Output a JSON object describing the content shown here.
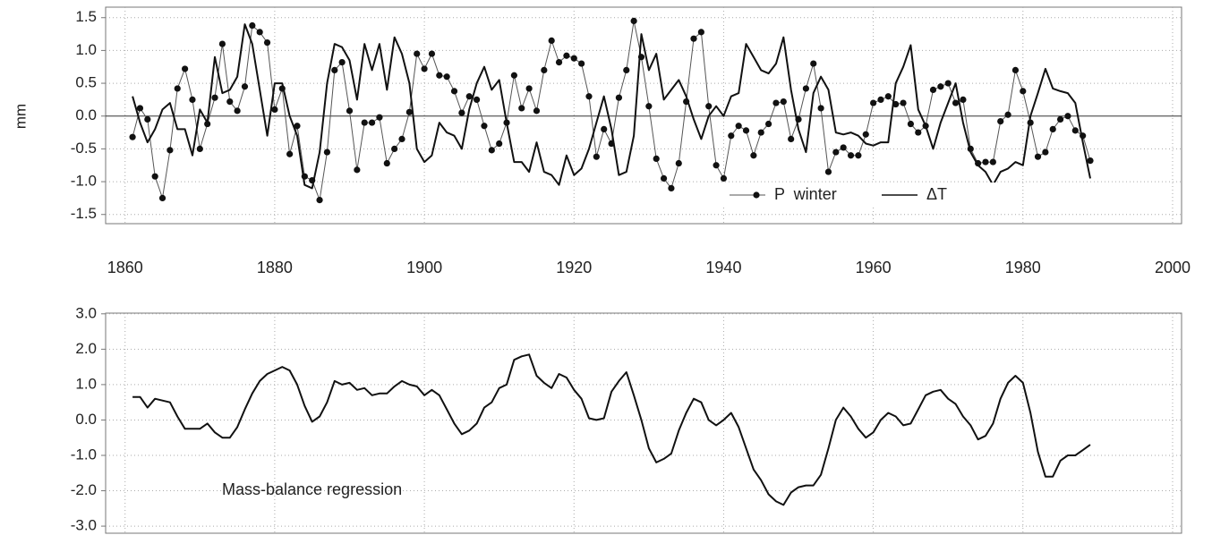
{
  "chart_data": [
    {
      "type": "line",
      "y_label": "mm",
      "x": [
        1861,
        1862,
        1863,
        1864,
        1865,
        1866,
        1867,
        1868,
        1869,
        1870,
        1871,
        1872,
        1873,
        1874,
        1875,
        1876,
        1877,
        1878,
        1879,
        1880,
        1881,
        1882,
        1883,
        1884,
        1885,
        1886,
        1887,
        1888,
        1889,
        1890,
        1891,
        1892,
        1893,
        1894,
        1895,
        1896,
        1897,
        1898,
        1899,
        1900,
        1901,
        1902,
        1903,
        1904,
        1905,
        1906,
        1907,
        1908,
        1909,
        1910,
        1911,
        1912,
        1913,
        1914,
        1915,
        1916,
        1917,
        1918,
        1919,
        1920,
        1921,
        1922,
        1923,
        1924,
        1925,
        1926,
        1927,
        1928,
        1929,
        1930,
        1931,
        1932,
        1933,
        1934,
        1935,
        1936,
        1937,
        1938,
        1939,
        1940,
        1941,
        1942,
        1943,
        1944,
        1945,
        1946,
        1947,
        1948,
        1949,
        1950,
        1951,
        1952,
        1953,
        1954,
        1955,
        1956,
        1957,
        1958,
        1959,
        1960,
        1961,
        1962,
        1963,
        1964,
        1965,
        1966,
        1967,
        1968,
        1969,
        1970,
        1971,
        1972,
        1973,
        1974,
        1975,
        1976,
        1977,
        1978,
        1979,
        1980,
        1981,
        1982,
        1983,
        1984,
        1985,
        1986,
        1987,
        1988,
        1989
      ],
      "series": [
        {
          "name": "P  winter",
          "color": "#111111",
          "line_color": "#555555",
          "marker": "circle",
          "values": [
            -0.32,
            0.12,
            -0.05,
            -0.92,
            -1.25,
            -0.52,
            0.42,
            0.72,
            0.25,
            -0.5,
            -0.12,
            0.28,
            1.1,
            0.22,
            0.08,
            0.45,
            1.38,
            1.28,
            1.12,
            0.1,
            0.42,
            -0.58,
            -0.15,
            -0.92,
            -0.98,
            -1.28,
            -0.55,
            0.7,
            0.82,
            0.08,
            -0.82,
            -0.1,
            -0.1,
            -0.02,
            -0.72,
            -0.5,
            -0.35,
            0.06,
            0.95,
            0.72,
            0.95,
            0.62,
            0.6,
            0.38,
            0.05,
            0.3,
            0.25,
            -0.15,
            -0.52,
            -0.42,
            -0.1,
            0.62,
            0.12,
            0.42,
            0.08,
            0.7,
            1.15,
            0.82,
            0.92,
            0.88,
            0.8,
            0.3,
            -0.62,
            -0.2,
            -0.42,
            0.28,
            0.7,
            1.45,
            0.9,
            0.15,
            -0.65,
            -0.95,
            -1.1,
            -0.72,
            0.22,
            1.18,
            1.28,
            0.15,
            -0.75,
            -0.95,
            -0.3,
            -0.15,
            -0.22,
            -0.6,
            -0.25,
            -0.12,
            0.2,
            0.22,
            -0.35,
            -0.05,
            0.42,
            0.8,
            0.12,
            -0.85,
            -0.55,
            -0.48,
            -0.6,
            -0.6,
            -0.28,
            0.2,
            0.25,
            0.3,
            0.18,
            0.2,
            -0.12,
            -0.25,
            -0.15,
            0.4,
            0.45,
            0.5,
            0.2,
            0.25,
            -0.5,
            -0.72,
            -0.7,
            -0.7,
            -0.08,
            0.02,
            0.7,
            0.38,
            -0.1,
            -0.62,
            -0.55,
            -0.2,
            -0.05,
            0.0,
            -0.22,
            -0.3,
            -0.68
          ]
        },
        {
          "name": "ΔT",
          "color": "#111111",
          "line_color": "#111111",
          "values": [
            0.3,
            -0.1,
            -0.4,
            -0.2,
            0.1,
            0.2,
            -0.2,
            -0.2,
            -0.6,
            0.1,
            -0.1,
            0.9,
            0.35,
            0.4,
            0.6,
            1.4,
            1.1,
            0.4,
            -0.3,
            0.5,
            0.5,
            0.0,
            -0.3,
            -1.05,
            -1.1,
            -0.55,
            0.5,
            1.1,
            1.05,
            0.85,
            0.25,
            1.1,
            0.7,
            1.1,
            0.4,
            1.2,
            0.95,
            0.5,
            -0.5,
            -0.7,
            -0.6,
            -0.1,
            -0.25,
            -0.3,
            -0.5,
            0.1,
            0.5,
            0.75,
            0.4,
            0.55,
            -0.1,
            -0.7,
            -0.7,
            -0.85,
            -0.4,
            -0.85,
            -0.9,
            -1.05,
            -0.6,
            -0.9,
            -0.8,
            -0.5,
            -0.1,
            0.3,
            -0.2,
            -0.9,
            -0.85,
            -0.3,
            1.25,
            0.7,
            0.95,
            0.25,
            0.4,
            0.55,
            0.3,
            -0.05,
            -0.35,
            0.0,
            0.15,
            0.0,
            0.3,
            0.35,
            1.1,
            0.9,
            0.7,
            0.65,
            0.8,
            1.2,
            0.4,
            -0.2,
            -0.55,
            0.35,
            0.6,
            0.4,
            -0.25,
            -0.28,
            -0.25,
            -0.3,
            -0.42,
            -0.45,
            -0.4,
            -0.4,
            0.5,
            0.75,
            1.08,
            0.1,
            -0.15,
            -0.5,
            -0.1,
            0.2,
            0.5,
            -0.1,
            -0.55,
            -0.75,
            -0.85,
            -1.05,
            -0.85,
            -0.8,
            -0.7,
            -0.75,
            0.0,
            0.35,
            0.72,
            0.42,
            0.38,
            0.35,
            0.2,
            -0.4,
            -0.95
          ]
        }
      ],
      "xlim": [
        1857.4,
        2001.2
      ],
      "xticks": [
        1860,
        1880,
        1900,
        1920,
        1940,
        1960,
        1980,
        2000
      ],
      "ylim": [
        -1.64,
        1.66
      ],
      "yticks": [
        1.5,
        {
          "value": 1,
          "label": "1.0"
        },
        0.5,
        {
          "value": 0,
          "label": "0.0"
        },
        -0.5,
        {
          "value": -1,
          "label": "-1.0"
        },
        -1.5
      ],
      "grid": true,
      "zero_line": true,
      "legend": "lower right"
    },
    {
      "type": "line",
      "annotation": "Mass-balance regression",
      "x": [
        1861,
        1862,
        1863,
        1864,
        1865,
        1866,
        1867,
        1868,
        1869,
        1870,
        1871,
        1872,
        1873,
        1874,
        1875,
        1876,
        1877,
        1878,
        1879,
        1880,
        1881,
        1882,
        1883,
        1884,
        1885,
        1886,
        1887,
        1888,
        1889,
        1890,
        1891,
        1892,
        1893,
        1894,
        1895,
        1896,
        1897,
        1898,
        1899,
        1900,
        1901,
        1902,
        1903,
        1904,
        1905,
        1906,
        1907,
        1908,
        1909,
        1910,
        1911,
        1912,
        1913,
        1914,
        1915,
        1916,
        1917,
        1918,
        1919,
        1920,
        1921,
        1922,
        1923,
        1924,
        1925,
        1926,
        1927,
        1928,
        1929,
        1930,
        1931,
        1932,
        1933,
        1934,
        1935,
        1936,
        1937,
        1938,
        1939,
        1940,
        1941,
        1942,
        1943,
        1944,
        1945,
        1946,
        1947,
        1948,
        1949,
        1950,
        1951,
        1952,
        1953,
        1954,
        1955,
        1956,
        1957,
        1958,
        1959,
        1960,
        1961,
        1962,
        1963,
        1964,
        1965,
        1966,
        1967,
        1968,
        1969,
        1970,
        1971,
        1972,
        1973,
        1974,
        1975,
        1976,
        1977,
        1978,
        1979,
        1980,
        1981,
        1982,
        1983,
        1984,
        1985,
        1986,
        1987,
        1988,
        1989
      ],
      "values": [
        0.65,
        0.65,
        0.35,
        0.6,
        0.55,
        0.5,
        0.1,
        -0.25,
        -0.25,
        -0.25,
        -0.1,
        -0.35,
        -0.5,
        -0.5,
        -0.2,
        0.3,
        0.75,
        1.1,
        1.3,
        1.4,
        1.5,
        1.4,
        1.0,
        0.4,
        -0.05,
        0.1,
        0.5,
        1.1,
        1.0,
        1.05,
        0.85,
        0.9,
        0.7,
        0.75,
        0.75,
        0.95,
        1.1,
        1.0,
        0.95,
        0.7,
        0.85,
        0.7,
        0.3,
        -0.1,
        -0.4,
        -0.3,
        -0.1,
        0.35,
        0.5,
        0.9,
        1.0,
        1.7,
        1.8,
        1.85,
        1.25,
        1.05,
        0.9,
        1.3,
        1.2,
        0.85,
        0.6,
        0.05,
        0.0,
        0.05,
        0.8,
        1.1,
        1.35,
        0.7,
        0.0,
        -0.8,
        -1.2,
        -1.1,
        -0.95,
        -0.3,
        0.2,
        0.6,
        0.5,
        0.0,
        -0.15,
        0.0,
        0.2,
        -0.2,
        -0.8,
        -1.4,
        -1.7,
        -2.1,
        -2.3,
        -2.4,
        -2.05,
        -1.9,
        -1.85,
        -1.85,
        -1.55,
        -0.8,
        0.0,
        0.35,
        0.1,
        -0.25,
        -0.5,
        -0.35,
        0.0,
        0.2,
        0.1,
        -0.15,
        -0.1,
        0.3,
        0.7,
        0.8,
        0.85,
        0.6,
        0.45,
        0.1,
        -0.15,
        -0.55,
        -0.45,
        -0.1,
        0.6,
        1.05,
        1.25,
        1.05,
        0.2,
        -0.9,
        -1.6,
        -1.6,
        -1.15,
        -1.0,
        -1.0,
        -0.85,
        -0.7
      ],
      "color": "#111111",
      "xlim": [
        1857.4,
        2001.2
      ],
      "xticks": [
        1860,
        1880,
        1900,
        1920,
        1940,
        1960,
        1980,
        2000
      ],
      "ylim": [
        -3.2,
        3.02
      ],
      "yticks": [
        {
          "value": 3,
          "label": "3.0"
        },
        {
          "value": 2,
          "label": "2.0"
        },
        {
          "value": 1,
          "label": "1.0"
        },
        {
          "value": 0,
          "label": "0.0"
        },
        {
          "value": -1,
          "label": "-1.0"
        },
        {
          "value": -2,
          "label": "-2.0"
        },
        {
          "value": -3,
          "label": "-3.0"
        }
      ],
      "grid": true
    }
  ]
}
